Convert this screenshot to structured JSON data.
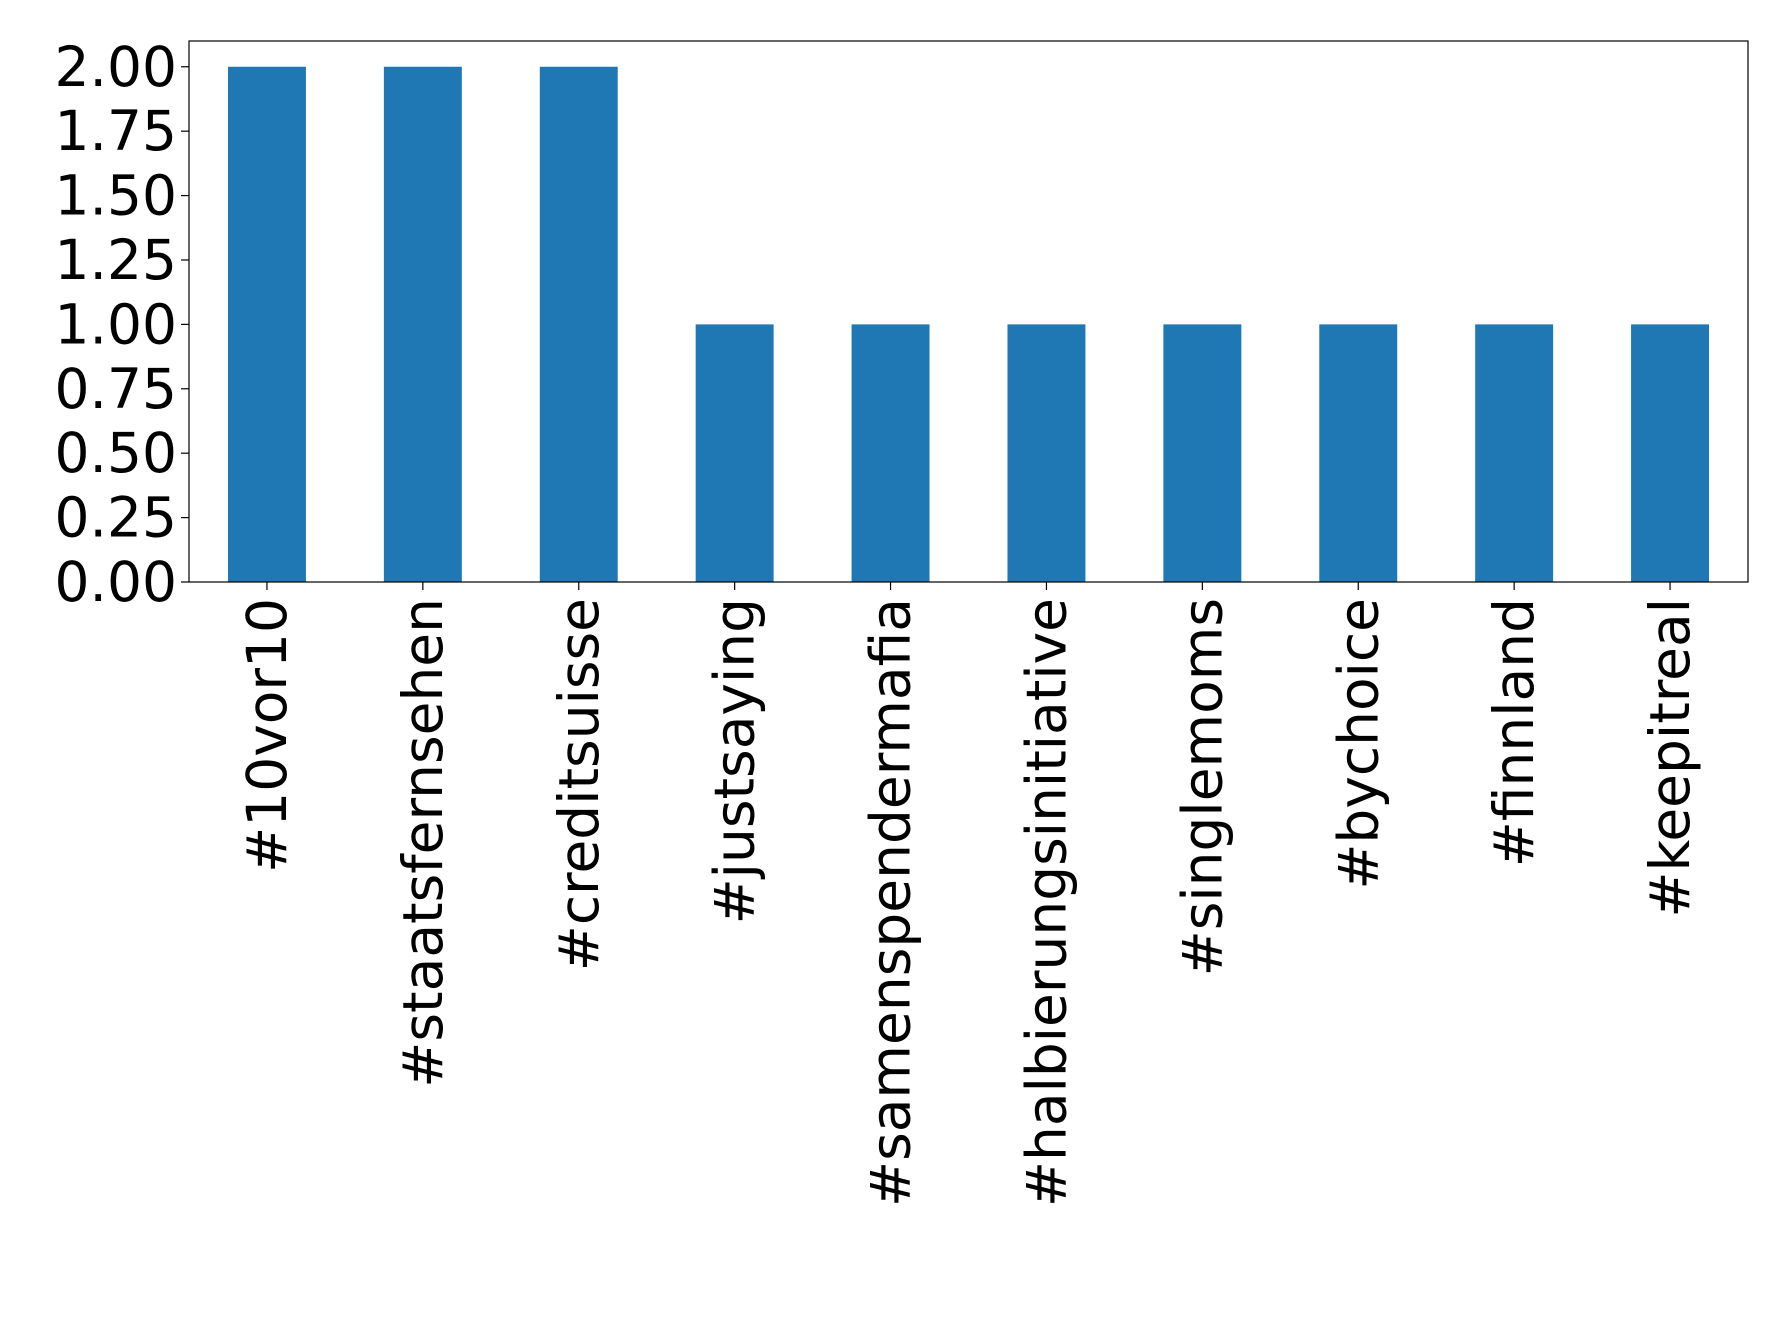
{
  "chart_data": {
    "type": "bar",
    "categories": [
      "#10vor10",
      "#staatsfernsehen",
      "#creditsuisse",
      "#justsaying",
      "#samenspendermafia",
      "#halbierungsinitiative",
      "#singlemoms",
      "#bychoice",
      "#finnland",
      "#keepitreal"
    ],
    "values": [
      2,
      2,
      2,
      1,
      1,
      1,
      1,
      1,
      1,
      1
    ],
    "color": "#1f77b4",
    "ylim": [
      0,
      2.1
    ],
    "yticks": [
      {
        "value": 0,
        "label": "0.00"
      },
      {
        "value": 0.25,
        "label": "0.25"
      },
      {
        "value": 0.5,
        "label": "0.50"
      },
      {
        "value": 0.75,
        "label": "0.75"
      },
      {
        "value": 1,
        "label": "1.00"
      },
      {
        "value": 1.25,
        "label": "1.25"
      },
      {
        "value": 1.5,
        "label": "1.50"
      },
      {
        "value": 1.75,
        "label": "1.75"
      },
      {
        "value": 2,
        "label": "2.00"
      }
    ],
    "grid": false
  }
}
